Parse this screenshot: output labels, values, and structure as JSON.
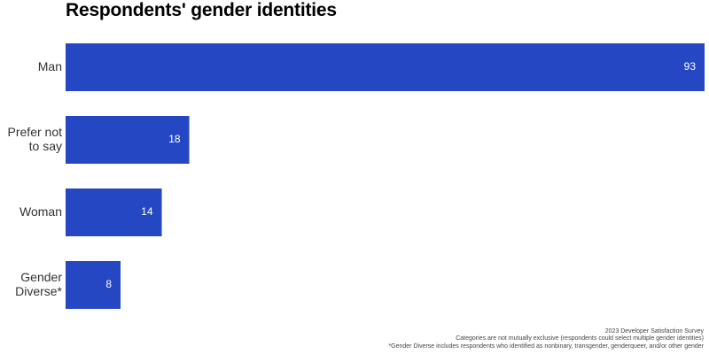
{
  "chart_data": {
    "type": "bar",
    "orientation": "horizontal",
    "title": "Respondents' gender identities",
    "categories": [
      "Man",
      "Prefer not to say",
      "Woman",
      "Gender Diverse*"
    ],
    "category_lines": [
      [
        "Man"
      ],
      [
        "Prefer not",
        "to say"
      ],
      [
        "Woman"
      ],
      [
        "Gender",
        "Diverse*"
      ]
    ],
    "values": [
      93,
      18,
      14,
      8
    ],
    "data_labels": [
      "93",
      "18",
      "14",
      "8"
    ],
    "xlim": [
      0,
      93
    ],
    "xlabel": "",
    "ylabel": "",
    "grid": false,
    "legend": "none",
    "bar_color": "#2647C4",
    "label_color": "#ffffff"
  },
  "footnotes": {
    "source": "2023 Developer Satisfaction Survey",
    "note": "Categories are not mutually exclusive (respondents could select multiple gender identities)",
    "definition": "*Gender Diverse includes respondents who identified as nonbinary, transgender, genderqueer, and/or other gender"
  }
}
